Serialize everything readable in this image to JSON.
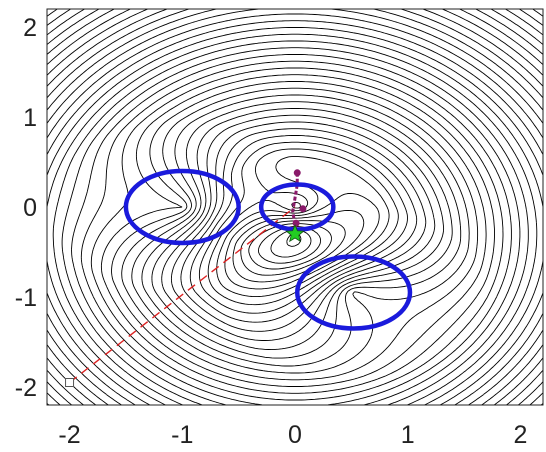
{
  "chart_data": {
    "type": "contour",
    "title": "",
    "xlabel": "",
    "ylabel": "",
    "xlim": [
      -2.2,
      2.2
    ],
    "ylim": [
      -2.2,
      2.2
    ],
    "x_ticks": [
      -2,
      -1,
      0,
      1,
      2
    ],
    "x_tick_labels": [
      "-2",
      "-1",
      "0",
      "1",
      "2"
    ],
    "y_ticks": [
      2,
      1,
      0,
      -1,
      -2
    ],
    "y_tick_labels": [
      "2",
      "1",
      "0",
      "-1",
      "-2"
    ],
    "grid": false,
    "contour_color": "#000000",
    "obstacles": [
      {
        "cx": -1.0,
        "cy": 0.0,
        "rx": 0.5,
        "ry": 0.4
      },
      {
        "cx": 0.02,
        "cy": 0.0,
        "rx": 0.32,
        "ry": 0.25
      },
      {
        "cx": 0.52,
        "cy": -0.95,
        "rx": 0.5,
        "ry": 0.4
      }
    ],
    "obstacle_color": "#1a1adc",
    "start": {
      "x": -2.0,
      "y": -1.95
    },
    "goal": {
      "x": 0.0,
      "y": -0.3
    },
    "goal_color": "#22cc22",
    "straight_path": {
      "color": "#dd2222",
      "points": [
        [
          -2.0,
          -1.95
        ],
        [
          0.0,
          0.0
        ]
      ]
    },
    "trajectory": {
      "color": "#8a1a6a",
      "points": [
        [
          0.02,
          0.38
        ],
        [
          0.02,
          0.25
        ],
        [
          0.0,
          0.1
        ],
        [
          -0.02,
          -0.05
        ],
        [
          0.0,
          -0.2
        ],
        [
          0.01,
          -0.3
        ]
      ],
      "markers": [
        [
          0.02,
          0.38
        ],
        [
          0.07,
          -0.02
        ],
        [
          0.01,
          -0.18
        ]
      ]
    }
  }
}
